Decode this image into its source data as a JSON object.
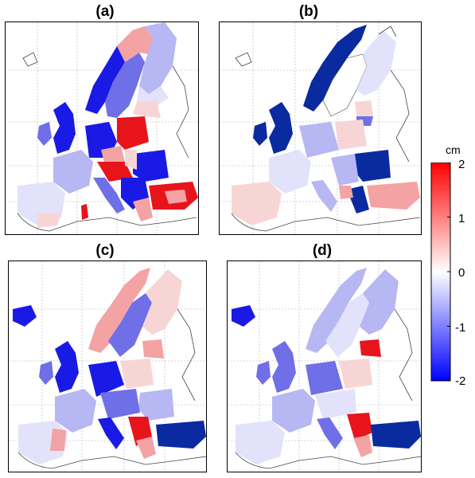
{
  "panels": [
    {
      "id": "a",
      "title": "(a)"
    },
    {
      "id": "b",
      "title": "(b)"
    },
    {
      "id": "c",
      "title": "(c)"
    },
    {
      "id": "d",
      "title": "(d)"
    }
  ],
  "colorbar": {
    "unit": "cm",
    "ticks": [
      "2",
      "1",
      "0",
      "-1",
      "-2"
    ],
    "min": -2,
    "max": 2,
    "colors": {
      "max": "#ff0000",
      "mid": "#ffffff",
      "min": "#0000ff"
    }
  },
  "colors": {
    "strong_red": "#e8141c",
    "light_red": "#f3a3a3",
    "pale_red": "#f8d5d5",
    "strong_blue": "#1a1ae6",
    "mid_blue": "#6f6fe8",
    "light_blue": "#b7b7f3",
    "pale_blue": "#e2e2fa",
    "hatched_blue": "#0a2aa0",
    "coast": "#444444",
    "grid": "#b0b0b0"
  }
}
